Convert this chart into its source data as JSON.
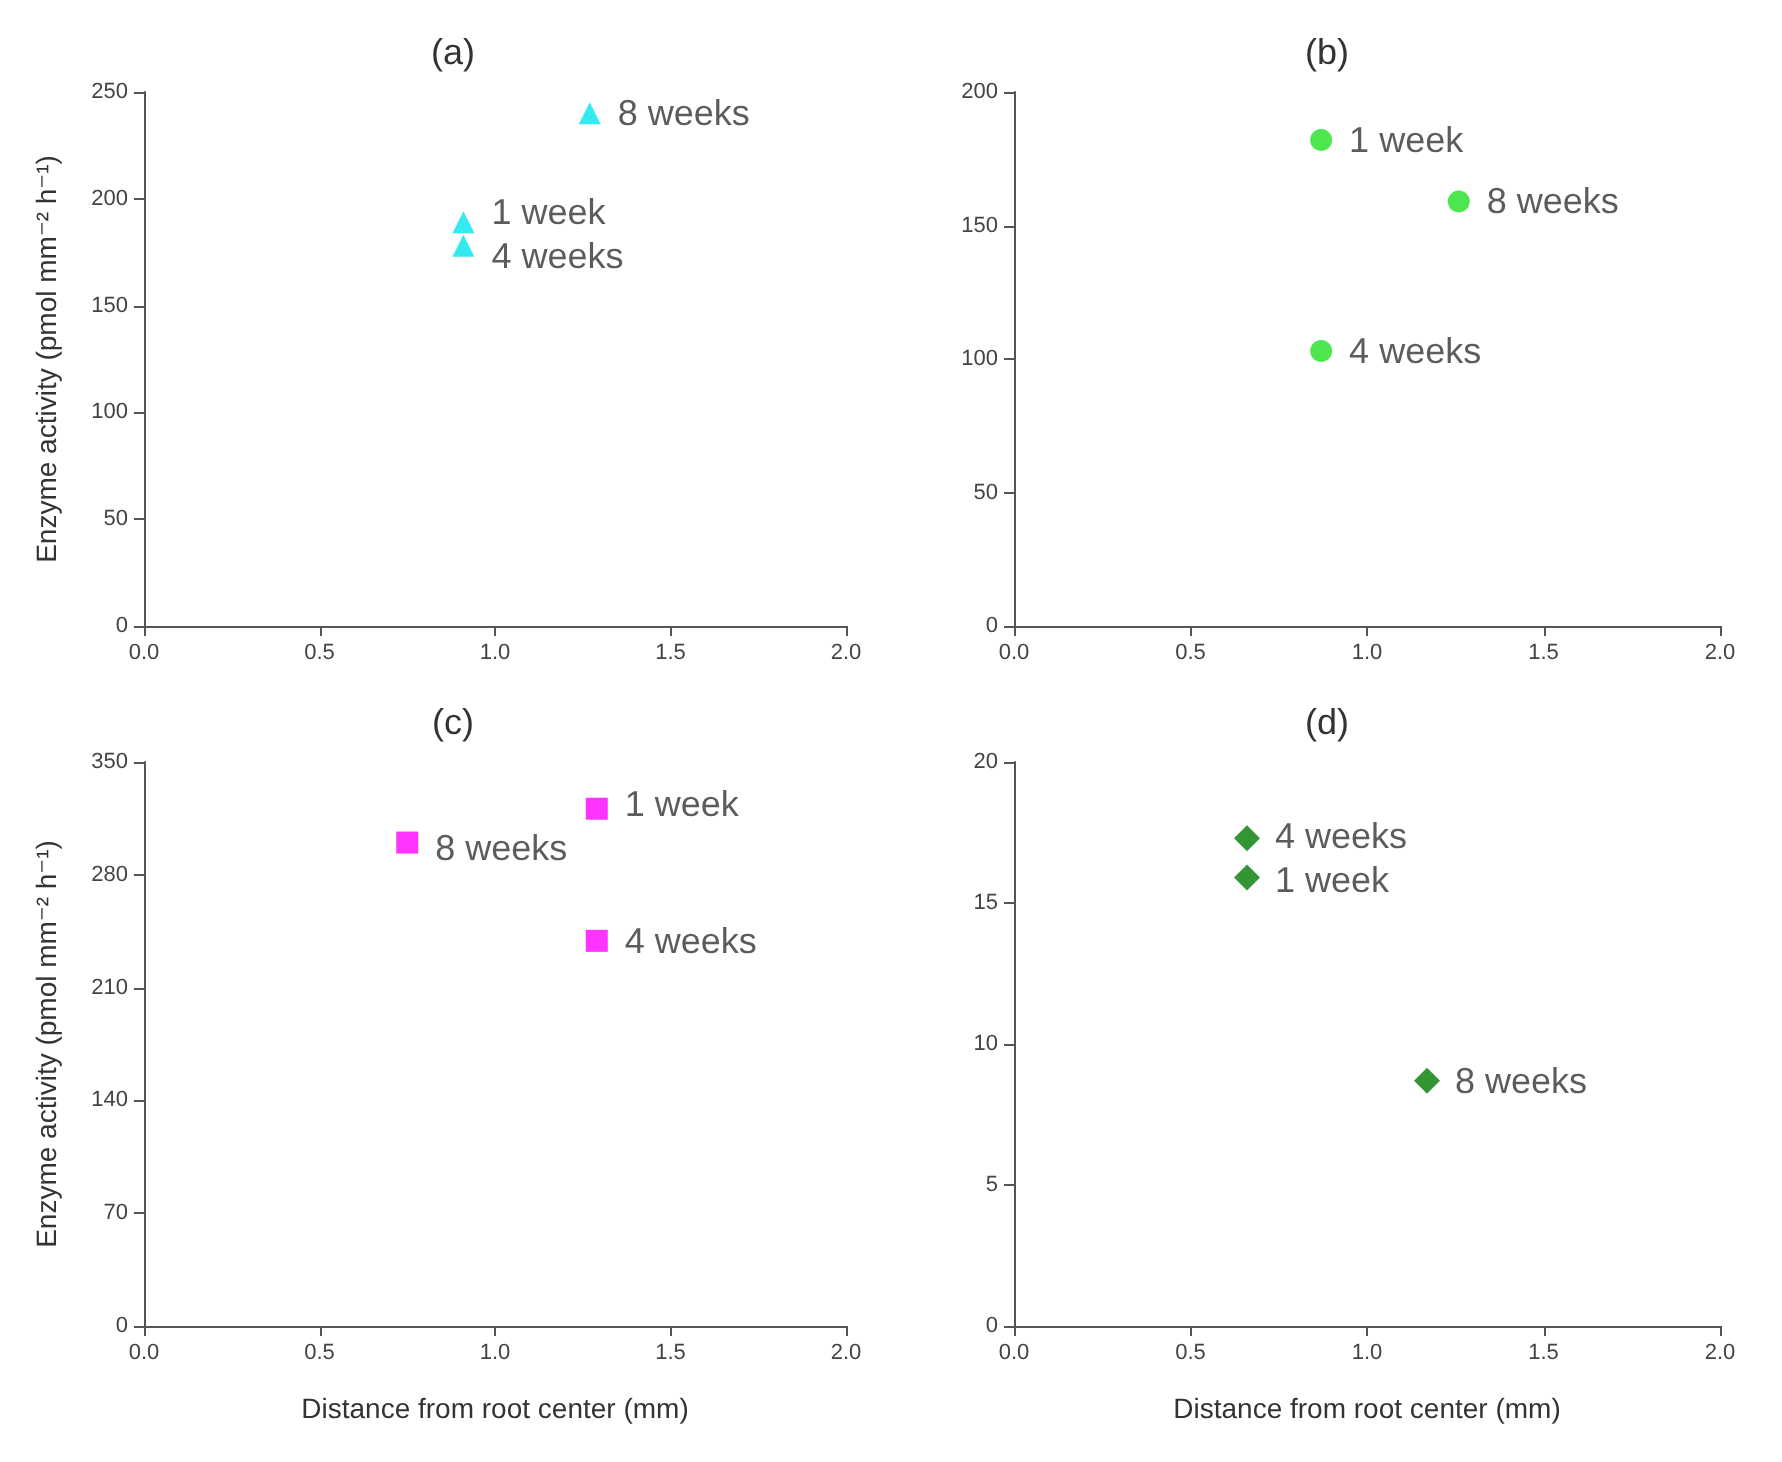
{
  "chart_data": [
    {
      "type": "scatter",
      "title": "(a)",
      "ylabel": "Enzyme activity (pmol mm⁻² h⁻¹)",
      "x": [
        1.27,
        0.91,
        0.91
      ],
      "series": [
        {
          "color": "#00e5ee",
          "values": [
            240,
            189,
            178
          ]
        }
      ],
      "marker": "triangle",
      "xlim": [
        0,
        2
      ],
      "xticks": [
        {
          "value": 0,
          "label": "0.0"
        },
        {
          "value": 0.5,
          "label": "0.5"
        },
        {
          "value": 1,
          "label": "1.0"
        },
        {
          "value": 1.5,
          "label": "1.5"
        },
        {
          "value": 2,
          "label": "2.0"
        }
      ],
      "ylim": [
        0,
        250
      ],
      "yticks": [
        0,
        50,
        100,
        150,
        200,
        250
      ],
      "annotations": [
        {
          "text": "8 weeks",
          "x": 1.27,
          "y": 240
        },
        {
          "text": "1 week",
          "x": 0.91,
          "y": 189
        },
        {
          "text": "4 weeks",
          "x": 0.91,
          "y": 178
        }
      ]
    },
    {
      "type": "scatter",
      "title": "(b)",
      "x": [
        0.87,
        1.26,
        0.87
      ],
      "series": [
        {
          "color": "#22e022",
          "values": [
            182,
            159,
            103
          ]
        }
      ],
      "marker": "circle",
      "xlim": [
        0,
        2
      ],
      "xticks": [
        {
          "value": 0,
          "label": "0.0"
        },
        {
          "value": 0.5,
          "label": "0.5"
        },
        {
          "value": 1,
          "label": "1.0"
        },
        {
          "value": 1.5,
          "label": "1.5"
        },
        {
          "value": 2,
          "label": "2.0"
        }
      ],
      "ylim": [
        0,
        200
      ],
      "yticks": [
        0,
        50,
        100,
        150,
        200
      ],
      "annotations": [
        {
          "text": "1 week",
          "x": 0.87,
          "y": 182
        },
        {
          "text": "8 weeks",
          "x": 1.26,
          "y": 159
        },
        {
          "text": "4 weeks",
          "x": 0.87,
          "y": 103
        }
      ]
    },
    {
      "type": "scatter",
      "title": "(c)",
      "xlabel": "Distance from root center (mm)",
      "ylabel": "Enzyme activity (pmol mm⁻² h⁻¹)",
      "x": [
        0.75,
        1.29,
        1.29
      ],
      "series": [
        {
          "color": "#ff00ff",
          "values": [
            300,
            321,
            239
          ]
        }
      ],
      "marker": "square",
      "xlim": [
        0,
        2
      ],
      "xticks": [
        {
          "value": 0,
          "label": "0.0"
        },
        {
          "value": 0.5,
          "label": "0.5"
        },
        {
          "value": 1,
          "label": "1.0"
        },
        {
          "value": 1.5,
          "label": "1.5"
        },
        {
          "value": 2,
          "label": "2.0"
        }
      ],
      "ylim": [
        0,
        350
      ],
      "yticks": [
        0,
        70,
        140,
        210,
        280,
        350
      ],
      "annotations": [
        {
          "text": "8 weeks",
          "x": 0.75,
          "y": 300
        },
        {
          "text": "1 week",
          "x": 1.29,
          "y": 321
        },
        {
          "text": "4 weeks",
          "x": 1.29,
          "y": 239
        }
      ]
    },
    {
      "type": "scatter",
      "title": "(d)",
      "xlabel": "Distance from root center (mm)",
      "x": [
        0.66,
        0.66,
        1.17
      ],
      "series": [
        {
          "color": "#007a00",
          "values": [
            17.3,
            15.9,
            8.7
          ]
        }
      ],
      "marker": "diamond",
      "xlim": [
        0,
        2
      ],
      "xticks": [
        {
          "value": 0,
          "label": "0.0"
        },
        {
          "value": 0.5,
          "label": "0.5"
        },
        {
          "value": 1,
          "label": "1.0"
        },
        {
          "value": 1.5,
          "label": "1.5"
        },
        {
          "value": 2,
          "label": "2.0"
        }
      ],
      "ylim": [
        0,
        20
      ],
      "yticks": [
        0,
        5,
        10,
        15,
        20
      ],
      "annotations": [
        {
          "text": "4 weeks",
          "x": 0.66,
          "y": 17.3
        },
        {
          "text": "1 week",
          "x": 0.66,
          "y": 15.9
        },
        {
          "text": "8 weeks",
          "x": 1.17,
          "y": 8.7
        }
      ]
    }
  ]
}
